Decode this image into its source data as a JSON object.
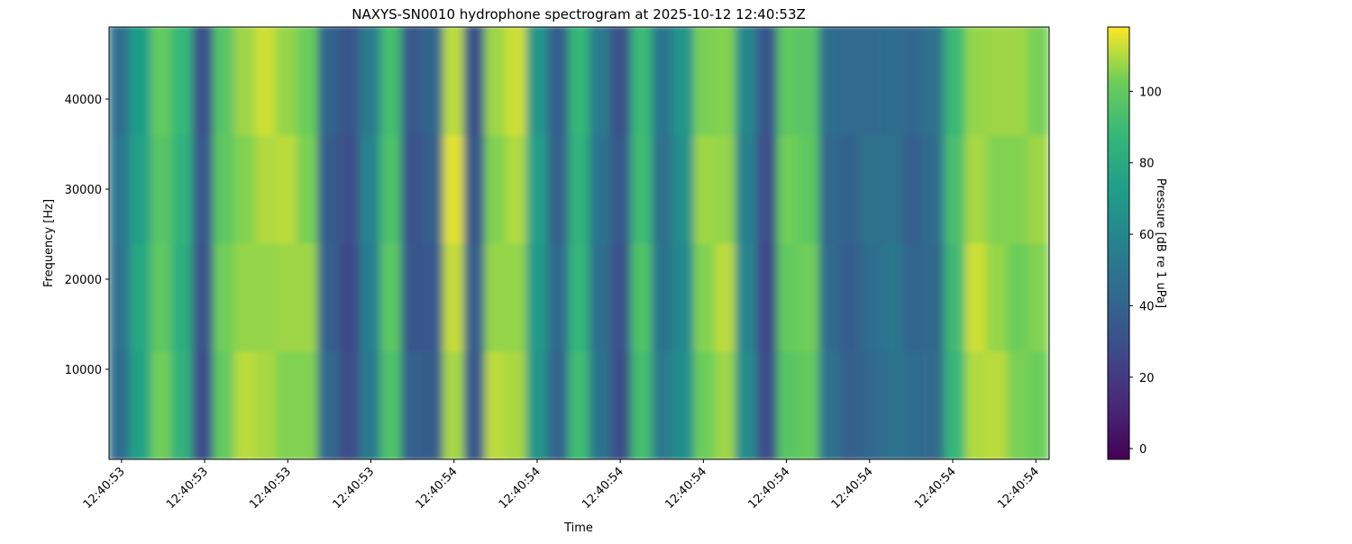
{
  "chart_data": {
    "type": "spectrogram",
    "title": "NAXYS-SN0010 hydrophone spectrogram at 2025-10-12 12:40:53Z",
    "xlabel": "Time",
    "ylabel": "Frequency [Hz]",
    "colorbar_label": "Pressure [dB re 1 uPa]",
    "colormap": "viridis",
    "xlim": [
      53.585,
      54.716
    ],
    "xticks": [
      {
        "value": 53.6,
        "label": "12:40:53"
      },
      {
        "value": 53.7,
        "label": "12:40:53"
      },
      {
        "value": 53.8,
        "label": "12:40:53"
      },
      {
        "value": 53.9,
        "label": "12:40:53"
      },
      {
        "value": 54.0,
        "label": "12:40:54"
      },
      {
        "value": 54.1,
        "label": "12:40:54"
      },
      {
        "value": 54.2,
        "label": "12:40:54"
      },
      {
        "value": 54.3,
        "label": "12:40:54"
      },
      {
        "value": 54.4,
        "label": "12:40:54"
      },
      {
        "value": 54.5,
        "label": "12:40:54"
      },
      {
        "value": 54.6,
        "label": "12:40:54"
      },
      {
        "value": 54.7,
        "label": "12:40:54"
      }
    ],
    "ylim": [
      0,
      48000
    ],
    "yticks": [
      10000,
      20000,
      30000,
      40000
    ],
    "clim": [
      -3,
      118
    ],
    "cticks": [
      0,
      20,
      40,
      60,
      80,
      100
    ],
    "z": [
      [
        45,
        75,
        103,
        84,
        29,
        100,
        111,
        109,
        105,
        105,
        43,
        29,
        52,
        95,
        38,
        37,
        109,
        35,
        111,
        109,
        67,
        40,
        91,
        49,
        29,
        92,
        53,
        64,
        102,
        108,
        63,
        29,
        97,
        100,
        48,
        39,
        42,
        48,
        45,
        44,
        87,
        110,
        111,
        104,
        102
      ],
      [
        48,
        78,
        99,
        82,
        32,
        103,
        107,
        107,
        108,
        108,
        39,
        27,
        55,
        98,
        34,
        35,
        112,
        38,
        107,
        107,
        70,
        43,
        87,
        47,
        32,
        95,
        49,
        62,
        105,
        111,
        59,
        27,
        100,
        103,
        44,
        37,
        45,
        51,
        41,
        42,
        90,
        113,
        107,
        102,
        105
      ],
      [
        51,
        74,
        97,
        85,
        35,
        99,
        105,
        110,
        111,
        104,
        37,
        30,
        58,
        94,
        32,
        38,
        115,
        34,
        105,
        110,
        73,
        39,
        85,
        50,
        35,
        91,
        47,
        65,
        108,
        107,
        57,
        30,
        103,
        99,
        42,
        40,
        48,
        47,
        39,
        45,
        93,
        109,
        105,
        105,
        108
      ],
      [
        47,
        72,
        100,
        88,
        31,
        97,
        108,
        113,
        107,
        102,
        40,
        33,
        54,
        92,
        35,
        41,
        111,
        32,
        108,
        113,
        69,
        37,
        88,
        53,
        31,
        89,
        50,
        68,
        104,
        105,
        60,
        33,
        99,
        97,
        45,
        43,
        44,
        45,
        42,
        48,
        89,
        107,
        108,
        108,
        104
      ]
    ]
  }
}
